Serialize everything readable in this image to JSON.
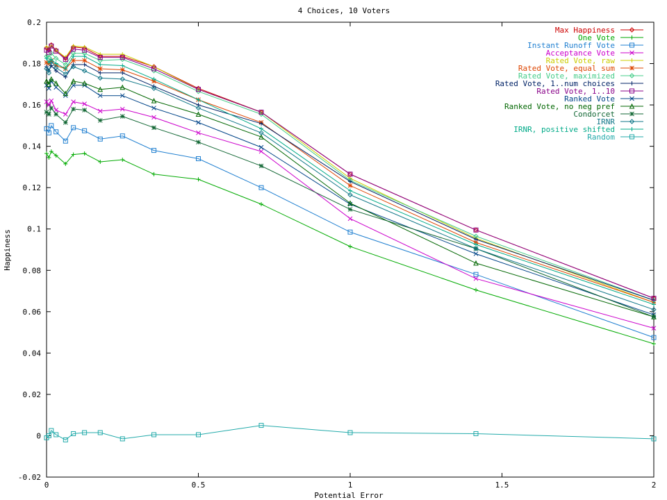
{
  "chart_data": {
    "type": "line",
    "title": "4 Choices, 10 Voters",
    "xlabel": "Potential Error",
    "ylabel": "Happiness",
    "xlim": [
      0,
      2
    ],
    "ylim": [
      -0.02,
      0.2
    ],
    "x_ticks": [
      "0",
      "0.5",
      "1",
      "1.5",
      "2"
    ],
    "y_ticks": [
      "-0.02",
      "0",
      "0.02",
      "0.04",
      "0.06",
      "0.08",
      "0.1",
      "0.12",
      "0.14",
      "0.16",
      "0.18",
      "0.2"
    ],
    "grid": false,
    "legend_position": "top-right",
    "x": [
      0,
      0.0078,
      0.0156,
      0.0313,
      0.0625,
      0.0884,
      0.125,
      0.1768,
      0.25,
      0.3536,
      0.5,
      0.7071,
      1.0,
      1.4142,
      2.0
    ],
    "series": [
      {
        "name": "Max Happiness",
        "color": "#cc0000",
        "marker": "diamond",
        "values": [
          0.1875,
          0.1865,
          0.189,
          0.1865,
          0.1825,
          0.188,
          0.1875,
          0.1835,
          0.1835,
          0.1785,
          0.168,
          0.1565,
          0.1265,
          0.0995,
          0.0665
        ]
      },
      {
        "name": "One Vote",
        "color": "#00aa00",
        "marker": "plus",
        "values": [
          0.1365,
          0.1345,
          0.1375,
          0.1355,
          0.1315,
          0.136,
          0.1365,
          0.1325,
          0.1335,
          0.1265,
          0.124,
          0.112,
          0.0915,
          0.0705,
          0.0445
        ]
      },
      {
        "name": "Instant Runoff Vote",
        "color": "#1f7fd0",
        "marker": "square",
        "values": [
          0.1485,
          0.1465,
          0.15,
          0.147,
          0.1425,
          0.149,
          0.1475,
          0.1435,
          0.145,
          0.138,
          0.134,
          0.12,
          0.0985,
          0.078,
          0.0475
        ]
      },
      {
        "name": "Acceptance Vote",
        "color": "#cc00cc",
        "marker": "x",
        "values": [
          0.1615,
          0.16,
          0.162,
          0.1575,
          0.1555,
          0.1615,
          0.1605,
          0.157,
          0.158,
          0.154,
          0.1465,
          0.1375,
          0.105,
          0.076,
          0.052
        ]
      },
      {
        "name": "Rated Vote, raw",
        "color": "#cccc00",
        "marker": "plus",
        "values": [
          0.188,
          0.1875,
          0.1885,
          0.1865,
          0.183,
          0.1885,
          0.188,
          0.1845,
          0.1845,
          0.1785,
          0.1675,
          0.1565,
          0.1245,
          0.0955,
          0.0645
        ]
      },
      {
        "name": "Rated Vote, equal sum",
        "color": "#dd4400",
        "marker": "star",
        "values": [
          0.1805,
          0.18,
          0.1815,
          0.179,
          0.1775,
          0.1815,
          0.1815,
          0.1775,
          0.177,
          0.1715,
          0.1625,
          0.1515,
          0.121,
          0.0935,
          0.0645
        ]
      },
      {
        "name": "Rated Vote, maximized",
        "color": "#44cc88",
        "marker": "diamond",
        "values": [
          0.1835,
          0.183,
          0.185,
          0.1825,
          0.1795,
          0.185,
          0.185,
          0.1815,
          0.182,
          0.1765,
          0.1665,
          0.1555,
          0.1235,
          0.0965,
          0.0655
        ]
      },
      {
        "name": "Rated Vote, 1..num choices",
        "color": "#002266",
        "marker": "plus",
        "values": [
          0.1785,
          0.1765,
          0.179,
          0.1765,
          0.1735,
          0.1795,
          0.1795,
          0.1755,
          0.1755,
          0.169,
          0.16,
          0.151,
          0.123,
          0.095,
          0.0655
        ]
      },
      {
        "name": "Rated Vote, 1..10",
        "color": "#880088",
        "marker": "square",
        "values": [
          0.1865,
          0.1855,
          0.1885,
          0.186,
          0.182,
          0.187,
          0.1865,
          0.183,
          0.183,
          0.1775,
          0.1675,
          0.1565,
          0.1265,
          0.0995,
          0.0665
        ]
      },
      {
        "name": "Ranked Vote",
        "color": "#004488",
        "marker": "x",
        "values": [
          0.1695,
          0.168,
          0.1715,
          0.1685,
          0.1645,
          0.1695,
          0.1695,
          0.1645,
          0.1645,
          0.1585,
          0.1515,
          0.1395,
          0.112,
          0.088,
          0.0585
        ]
      },
      {
        "name": "Ranked Vote, no neg pref",
        "color": "#006600",
        "marker": "triangle",
        "values": [
          0.1715,
          0.17,
          0.1725,
          0.1705,
          0.1655,
          0.1715,
          0.1705,
          0.1675,
          0.1685,
          0.162,
          0.1555,
          0.1445,
          0.1125,
          0.0835,
          0.0575
        ]
      },
      {
        "name": "Condorcet",
        "color": "#116633",
        "marker": "star",
        "values": [
          0.1565,
          0.1555,
          0.1585,
          0.1555,
          0.1515,
          0.158,
          0.1575,
          0.1525,
          0.1545,
          0.149,
          0.142,
          0.1305,
          0.1095,
          0.0905,
          0.0575
        ]
      },
      {
        "name": "IRNR",
        "color": "#117788",
        "marker": "diamond",
        "values": [
          0.1775,
          0.1755,
          0.181,
          0.178,
          0.175,
          0.1785,
          0.1765,
          0.173,
          0.1725,
          0.168,
          0.1585,
          0.1465,
          0.1165,
          0.0905,
          0.061
        ]
      },
      {
        "name": "IRNR, positive shifted",
        "color": "#00aa88",
        "marker": "plus",
        "values": [
          0.1825,
          0.1805,
          0.182,
          0.18,
          0.1775,
          0.1835,
          0.1835,
          0.1795,
          0.179,
          0.1725,
          0.1625,
          0.1485,
          0.1185,
          0.0925,
          0.0635
        ]
      },
      {
        "name": "Random",
        "color": "#22aaaa",
        "marker": "square",
        "values": [
          -0.001,
          0.0,
          0.0025,
          0.0005,
          -0.002,
          0.001,
          0.0015,
          0.0015,
          -0.0015,
          0.0005,
          0.0005,
          0.005,
          0.0015,
          0.001,
          -0.0015
        ]
      }
    ]
  }
}
